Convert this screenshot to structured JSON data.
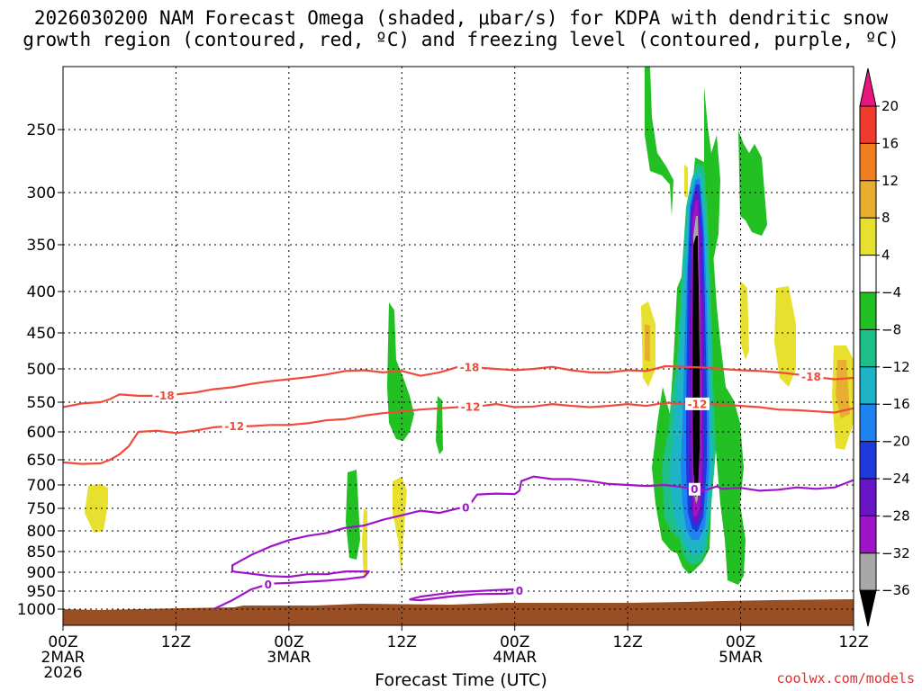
{
  "title_line1": "2026030200 NAM Forecast Omega (shaded, μbar/s) for KDPA with dendritic snow",
  "title_line2": "growth region (contoured, red, ºC) and freezing level (contoured, purple, ºC)",
  "credit": "coolwx.com/models",
  "chart_data": {
    "type": "heatmap",
    "xlabel": "Forecast Time (UTC)",
    "ylabel": "",
    "x_unit": "forecast hours",
    "xlim": [
      0,
      84
    ],
    "y_unit": "hPa",
    "ylim": [
      1020,
      200
    ],
    "y_ticks": [
      250,
      300,
      350,
      400,
      450,
      500,
      550,
      600,
      650,
      700,
      750,
      800,
      850,
      900,
      950,
      1000
    ],
    "x_ticks": [
      {
        "hour": 0,
        "lines": [
          "00Z",
          "2MAR",
          "2026"
        ]
      },
      {
        "hour": 12,
        "lines": [
          "12Z"
        ]
      },
      {
        "hour": 24,
        "lines": [
          "00Z",
          "3MAR"
        ]
      },
      {
        "hour": 36,
        "lines": [
          "12Z"
        ]
      },
      {
        "hour": 48,
        "lines": [
          "00Z",
          "4MAR"
        ]
      },
      {
        "hour": 60,
        "lines": [
          "12Z"
        ]
      },
      {
        "hour": 72,
        "lines": [
          "00Z",
          "5MAR"
        ]
      },
      {
        "hour": 84,
        "lines": [
          "12Z"
        ]
      }
    ],
    "grid": true,
    "colorbar": {
      "labels": [
        "20",
        "16",
        "12",
        "8",
        "4",
        "−4",
        "−8",
        "−12",
        "−16",
        "−20",
        "−24",
        "−28",
        "−32",
        "−36"
      ],
      "colors": [
        "#e8167d",
        "#f03a2e",
        "#f07d1e",
        "#e8ae30",
        "#e8e02e",
        "#ffffff",
        "#22c022",
        "#1ec08a",
        "#1eb4c8",
        "#1e82f0",
        "#1e3adc",
        "#6a14c8",
        "#a014c8",
        "#a8a8a8",
        "#000000"
      ]
    },
    "contours": [
      {
        "label": "-18",
        "color": "#f04a3a",
        "label_at": [
          10.8,
          43.2,
          79.5
        ],
        "points": [
          [
            0,
            558
          ],
          [
            2,
            552
          ],
          [
            4,
            550
          ],
          [
            5,
            545
          ],
          [
            6,
            538
          ],
          [
            8,
            540
          ],
          [
            10,
            540
          ],
          [
            12,
            538
          ],
          [
            14,
            535
          ],
          [
            16,
            530
          ],
          [
            18,
            527
          ],
          [
            20,
            522
          ],
          [
            22,
            518
          ],
          [
            24,
            515
          ],
          [
            26,
            512
          ],
          [
            28,
            508
          ],
          [
            30,
            503
          ],
          [
            32,
            502
          ],
          [
            34,
            505
          ],
          [
            36,
            503
          ],
          [
            38,
            510
          ],
          [
            40,
            505
          ],
          [
            42,
            497
          ],
          [
            44,
            498
          ],
          [
            46,
            500
          ],
          [
            48,
            502
          ],
          [
            50,
            500
          ],
          [
            52,
            497
          ],
          [
            54,
            502
          ],
          [
            56,
            505
          ],
          [
            58,
            505
          ],
          [
            60,
            502
          ],
          [
            62,
            503
          ],
          [
            64,
            496
          ],
          [
            66,
            497
          ],
          [
            68,
            498
          ],
          [
            70,
            500
          ],
          [
            72,
            502
          ],
          [
            74,
            503
          ],
          [
            76,
            505
          ],
          [
            78,
            508
          ],
          [
            80,
            512
          ],
          [
            82,
            515
          ],
          [
            84,
            513
          ]
        ]
      },
      {
        "label": "-12",
        "color": "#f04a3a",
        "label_at": [
          18.2,
          43.3,
          67.4
        ],
        "points": [
          [
            0,
            655
          ],
          [
            2,
            658
          ],
          [
            4,
            657
          ],
          [
            5,
            650
          ],
          [
            6,
            640
          ],
          [
            7,
            625
          ],
          [
            8,
            600
          ],
          [
            10,
            598
          ],
          [
            12,
            602
          ],
          [
            14,
            598
          ],
          [
            16,
            592
          ],
          [
            18,
            590
          ],
          [
            20,
            590
          ],
          [
            22,
            588
          ],
          [
            24,
            588
          ],
          [
            26,
            585
          ],
          [
            28,
            580
          ],
          [
            30,
            578
          ],
          [
            32,
            572
          ],
          [
            34,
            568
          ],
          [
            36,
            565
          ],
          [
            38,
            562
          ],
          [
            40,
            560
          ],
          [
            42,
            558
          ],
          [
            44,
            557
          ],
          [
            46,
            553
          ],
          [
            48,
            558
          ],
          [
            50,
            557
          ],
          [
            52,
            553
          ],
          [
            54,
            556
          ],
          [
            56,
            558
          ],
          [
            58,
            556
          ],
          [
            60,
            553
          ],
          [
            62,
            556
          ],
          [
            64,
            551
          ],
          [
            66,
            552
          ],
          [
            68,
            553
          ],
          [
            70,
            554
          ],
          [
            72,
            556
          ],
          [
            74,
            558
          ],
          [
            76,
            562
          ],
          [
            78,
            563
          ],
          [
            80,
            565
          ],
          [
            82,
            567
          ],
          [
            84,
            560
          ]
        ]
      },
      {
        "label": "0",
        "color": "#a014c8",
        "label_at": [
          21.8,
          42.8,
          67.1
        ],
        "points": [
          [
            16,
            1000
          ],
          [
            18,
            975
          ],
          [
            20,
            945
          ],
          [
            22,
            930
          ],
          [
            24,
            928
          ],
          [
            26,
            925
          ],
          [
            28,
            922
          ],
          [
            30,
            918
          ],
          [
            32,
            912
          ],
          [
            32.5,
            898
          ],
          [
            30,
            898
          ],
          [
            28,
            905
          ],
          [
            26,
            905
          ],
          [
            24,
            912
          ],
          [
            22,
            910
          ],
          [
            20,
            904
          ],
          [
            18,
            898
          ],
          [
            18,
            883
          ],
          [
            20,
            858
          ],
          [
            22,
            838
          ],
          [
            24,
            822
          ],
          [
            26,
            812
          ],
          [
            28,
            805
          ],
          [
            30,
            793
          ],
          [
            32,
            788
          ],
          [
            34,
            775
          ],
          [
            36,
            765
          ],
          [
            38,
            755
          ],
          [
            40,
            760
          ],
          [
            42,
            750
          ],
          [
            43,
            748
          ],
          [
            44,
            720
          ],
          [
            46,
            718
          ],
          [
            48,
            719
          ],
          [
            48.5,
            712
          ],
          [
            48.7,
            692
          ],
          [
            50,
            683
          ],
          [
            52,
            688
          ],
          [
            54,
            688
          ],
          [
            56,
            692
          ],
          [
            58,
            698
          ],
          [
            60,
            700
          ],
          [
            62,
            702
          ],
          [
            64,
            700
          ],
          [
            66,
            705
          ],
          [
            68,
            712
          ],
          [
            69.5,
            703
          ],
          [
            70,
            708
          ],
          [
            72,
            706
          ],
          [
            74,
            712
          ],
          [
            76,
            710
          ],
          [
            78,
            705
          ],
          [
            80,
            708
          ],
          [
            82,
            705
          ],
          [
            84,
            690
          ]
        ]
      },
      {
        "label": "0",
        "color": "#a014c8",
        "label_at": [
          48.5
        ],
        "points": [
          [
            36.8,
            973
          ],
          [
            38,
            965
          ],
          [
            40,
            958
          ],
          [
            42,
            952
          ],
          [
            44,
            950
          ],
          [
            46,
            947
          ],
          [
            48,
            945
          ],
          [
            49,
            953
          ],
          [
            47,
            957
          ],
          [
            44,
            958
          ],
          [
            41,
            965
          ],
          [
            38,
            975
          ],
          [
            36.8,
            973
          ]
        ]
      }
    ]
  }
}
